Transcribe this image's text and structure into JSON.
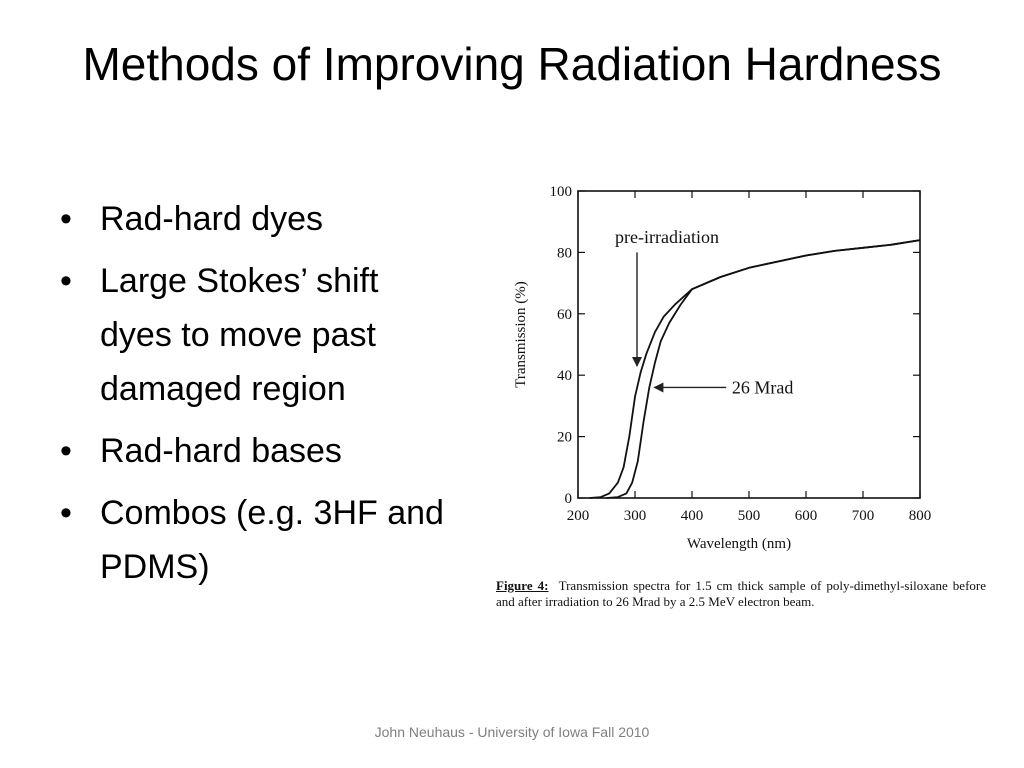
{
  "slide": {
    "title": "Methods of Improving Radiation Hardness",
    "bullets": [
      "Rad-hard dyes",
      "Large Stokes’ shift dyes to move past damaged region",
      "Rad-hard bases",
      "Combos (e.g. 3HF and PDMS)"
    ],
    "footer": "John Neuhaus - University of Iowa Fall 2010"
  },
  "figure": {
    "caption_label": "Figure 4:",
    "caption_text": "Transmission spectra for 1.5 cm thick sample of poly-dimethyl-siloxane before and after irradiation to 26 Mrad by a 2.5 MeV electron beam."
  },
  "chart_data": {
    "type": "line",
    "title": "",
    "xlabel": "Wavelength (nm)",
    "ylabel": "Transmission (%)",
    "xlim": [
      200,
      800
    ],
    "ylim": [
      0,
      100
    ],
    "xticks": [
      200,
      300,
      400,
      500,
      600,
      700,
      800
    ],
    "yticks": [
      0,
      20,
      40,
      60,
      80,
      100
    ],
    "grid": false,
    "series": [
      {
        "name": "pre-irradiation",
        "x": [
          220,
          240,
          255,
          270,
          280,
          290,
          300,
          310,
          320,
          335,
          350,
          370,
          400,
          450,
          500,
          550,
          600,
          650,
          700,
          750,
          800
        ],
        "y": [
          0,
          0.3,
          1.5,
          5,
          10,
          20,
          33,
          41,
          47,
          54,
          59,
          63,
          68,
          72,
          75,
          77,
          79,
          80.5,
          81.5,
          82.5,
          84
        ]
      },
      {
        "name": "26 Mrad",
        "x": [
          250,
          270,
          285,
          295,
          305,
          315,
          325,
          335,
          345,
          360,
          380,
          400,
          450,
          500,
          550,
          600,
          650,
          700,
          750,
          800
        ],
        "y": [
          0,
          0.3,
          1.5,
          5,
          12,
          25,
          36,
          44,
          51,
          57,
          63,
          68,
          72,
          75,
          77,
          79,
          80.5,
          81.5,
          82.5,
          84
        ]
      }
    ],
    "annotations": [
      {
        "text": "pre-irradiation",
        "x": 300,
        "y": 43
      },
      {
        "text": "26 Mrad",
        "x": 320,
        "y": 36
      }
    ]
  }
}
